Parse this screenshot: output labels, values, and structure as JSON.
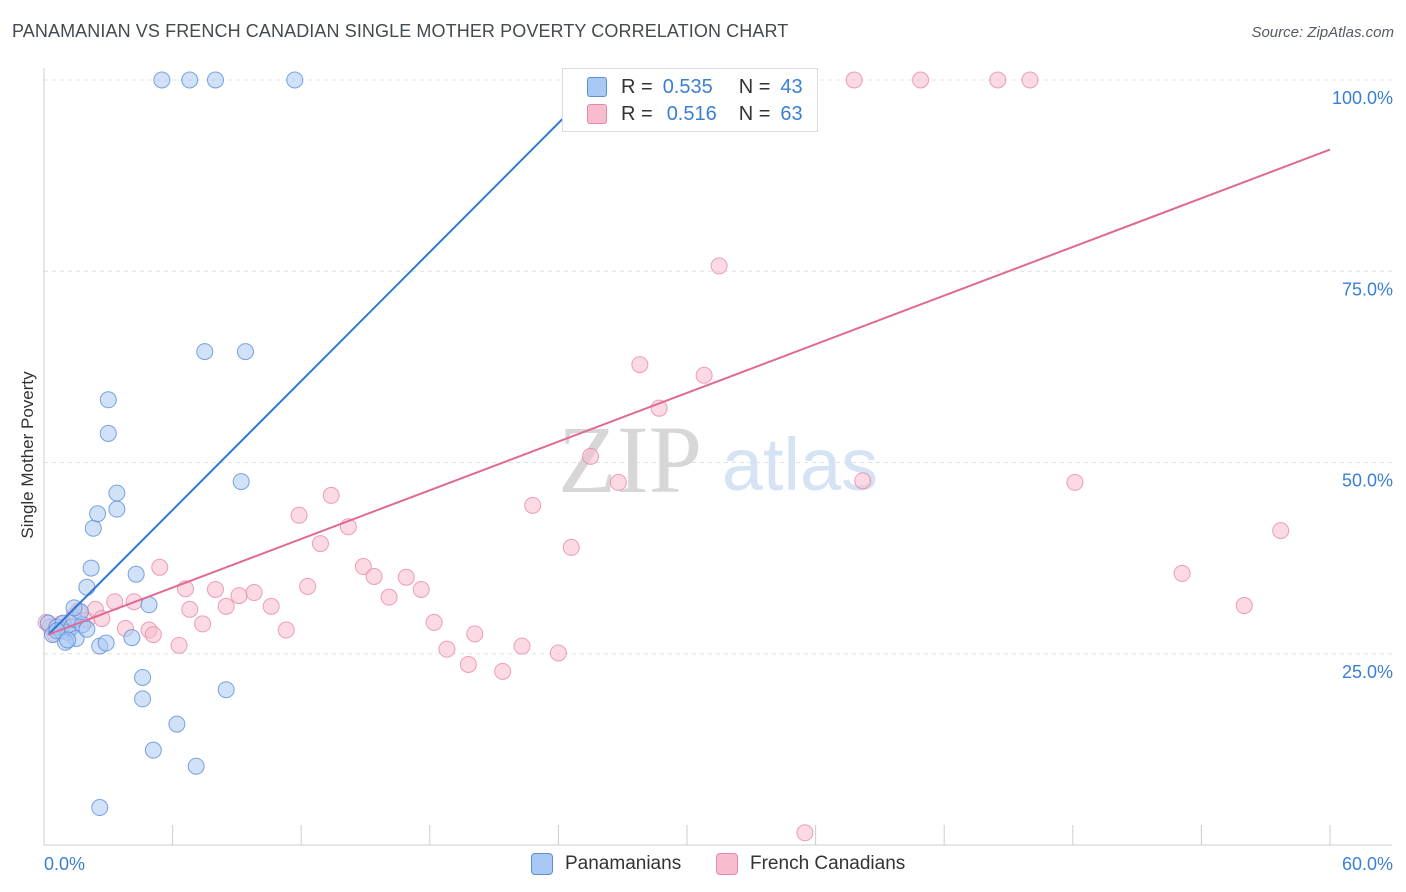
{
  "title": "PANAMANIAN VS FRENCH CANADIAN SINGLE MOTHER POVERTY CORRELATION CHART",
  "source": "Source: ZipAtlas.com",
  "watermark": {
    "zip": "ZIP",
    "atlas": "atlas"
  },
  "legend": {
    "r_label": "R =",
    "n_label": "N =",
    "rows": [
      {
        "r": "0.535",
        "n": "43"
      },
      {
        "r": "0.516",
        "n": "63"
      }
    ]
  },
  "colors": {
    "panamanians_fill": "#a9c8f3",
    "panamanians_stroke": "#5b8fd9",
    "panamanians_line": "#2f78d6",
    "french_fill": "#f7bccd",
    "french_stroke": "#e88aa5",
    "french_line": "#e06a93",
    "tick_label": "#3b7fd4"
  },
  "chart_data": {
    "type": "scatter",
    "title": "PANAMANIAN VS FRENCH CANADIAN SINGLE MOTHER POVERTY CORRELATION CHART",
    "xlabel": "",
    "ylabel": "Single Mother Poverty",
    "xlim": [
      0,
      60
    ],
    "ylim": [
      0,
      105
    ],
    "x_tick_labels": [
      "0.0%",
      "60.0%"
    ],
    "y_ticks": [
      25,
      50,
      75,
      100
    ],
    "y_tick_labels": [
      "25.0%",
      "50.0%",
      "75.0%",
      "100.0%"
    ],
    "grid": true,
    "legend_position": "top-center",
    "series": [
      {
        "name": "Panamanians",
        "r": 0.535,
        "n": 43,
        "trend": {
          "x": [
            0.2,
            25.4
          ],
          "y": [
            27.5,
            98.3
          ]
        },
        "points": [
          [
            0.2,
            29.0
          ],
          [
            0.4,
            27.5
          ],
          [
            0.6,
            28.5
          ],
          [
            0.8,
            28.0
          ],
          [
            0.9,
            29.0
          ],
          [
            1.1,
            27.8
          ],
          [
            1.3,
            28.5
          ],
          [
            1.5,
            27.0
          ],
          [
            1.4,
            29.5
          ],
          [
            1.0,
            26.5
          ],
          [
            0.6,
            28.0
          ],
          [
            1.8,
            28.8
          ],
          [
            2.0,
            28.2
          ],
          [
            1.7,
            30.5
          ],
          [
            1.4,
            31.0
          ],
          [
            1.1,
            26.8
          ],
          [
            2.0,
            33.7
          ],
          [
            2.2,
            36.2
          ],
          [
            2.3,
            41.4
          ],
          [
            2.5,
            43.3
          ],
          [
            2.6,
            26.0
          ],
          [
            3.4,
            43.9
          ],
          [
            3.0,
            53.8
          ],
          [
            3.0,
            58.2
          ],
          [
            2.9,
            26.4
          ],
          [
            4.1,
            27.1
          ],
          [
            4.6,
            21.9
          ],
          [
            4.9,
            31.4
          ],
          [
            4.6,
            19.1
          ],
          [
            5.1,
            12.4
          ],
          [
            4.3,
            35.4
          ],
          [
            3.4,
            46.0
          ],
          [
            6.2,
            15.8
          ],
          [
            5.5,
            100.0
          ],
          [
            6.8,
            100.0
          ],
          [
            8.0,
            100.0
          ],
          [
            11.7,
            100.0
          ],
          [
            7.1,
            10.3
          ],
          [
            8.5,
            20.3
          ],
          [
            9.2,
            47.5
          ],
          [
            9.4,
            64.5
          ],
          [
            7.5,
            64.5
          ],
          [
            2.6,
            4.9
          ]
        ]
      },
      {
        "name": "French Canadians",
        "r": 0.516,
        "n": 63,
        "trend": {
          "x": [
            0.2,
            60
          ],
          "y": [
            27.5,
            90.9
          ]
        },
        "points": [
          [
            0.1,
            29.1
          ],
          [
            0.3,
            28.5
          ],
          [
            0.5,
            27.6
          ],
          [
            0.8,
            28.9
          ],
          [
            1.1,
            28.3
          ],
          [
            1.4,
            29.9
          ],
          [
            1.6,
            30.6
          ],
          [
            2.0,
            29.4
          ],
          [
            2.4,
            30.8
          ],
          [
            2.7,
            29.6
          ],
          [
            3.3,
            31.8
          ],
          [
            3.8,
            28.3
          ],
          [
            4.2,
            31.8
          ],
          [
            4.9,
            28.1
          ],
          [
            5.4,
            36.3
          ],
          [
            5.1,
            27.5
          ],
          [
            6.3,
            26.1
          ],
          [
            6.8,
            30.8
          ],
          [
            6.6,
            33.5
          ],
          [
            7.4,
            28.9
          ],
          [
            8.0,
            33.4
          ],
          [
            8.5,
            31.2
          ],
          [
            9.1,
            32.6
          ],
          [
            9.8,
            33.0
          ],
          [
            10.6,
            31.2
          ],
          [
            11.3,
            28.1
          ],
          [
            11.9,
            43.1
          ],
          [
            12.3,
            33.8
          ],
          [
            12.9,
            39.4
          ],
          [
            13.4,
            45.7
          ],
          [
            14.2,
            41.6
          ],
          [
            14.9,
            36.4
          ],
          [
            15.4,
            35.1
          ],
          [
            16.1,
            32.4
          ],
          [
            16.9,
            35.0
          ],
          [
            17.6,
            33.4
          ],
          [
            18.2,
            29.1
          ],
          [
            18.8,
            25.6
          ],
          [
            19.8,
            23.6
          ],
          [
            20.1,
            27.6
          ],
          [
            21.4,
            22.7
          ],
          [
            22.3,
            26.0
          ],
          [
            22.8,
            44.4
          ],
          [
            24.0,
            25.1
          ],
          [
            24.6,
            38.9
          ],
          [
            25.5,
            50.8
          ],
          [
            26.8,
            47.4
          ],
          [
            27.8,
            62.8
          ],
          [
            28.7,
            57.1
          ],
          [
            30.8,
            61.4
          ],
          [
            31.5,
            75.7
          ],
          [
            33.0,
            100.0
          ],
          [
            34.0,
            100.0
          ],
          [
            38.2,
            47.6
          ],
          [
            37.8,
            100.0
          ],
          [
            40.9,
            100.0
          ],
          [
            44.5,
            100.0
          ],
          [
            46.0,
            100.0
          ],
          [
            48.1,
            47.4
          ],
          [
            53.1,
            35.5
          ],
          [
            56.0,
            31.3
          ],
          [
            57.7,
            41.1
          ],
          [
            35.5,
            1.6
          ]
        ]
      }
    ]
  },
  "bottom_legend": {
    "items": [
      {
        "label": "Panamanians"
      },
      {
        "label": "French Canadians"
      }
    ]
  }
}
